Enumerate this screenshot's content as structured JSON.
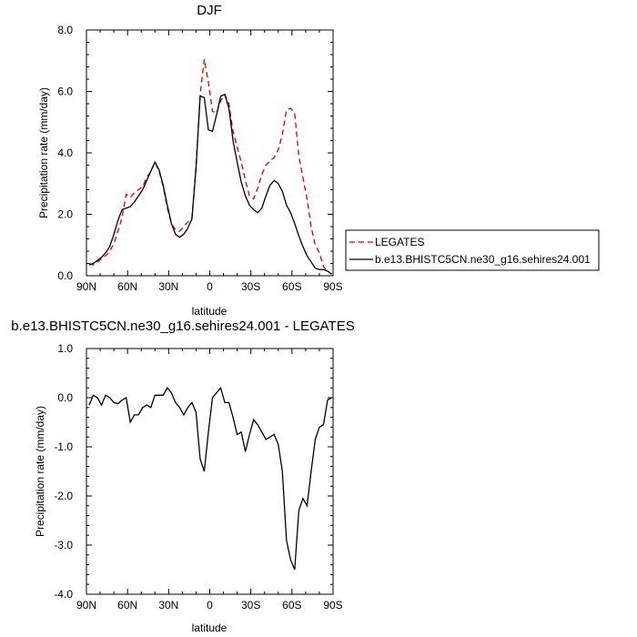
{
  "chart_data": [
    {
      "type": "line",
      "title": "DJF",
      "xlabel": "latitude",
      "ylabel": "Precipitation rate (mm/day)",
      "xlim": [
        -90,
        90
      ],
      "ylim": [
        0,
        8
      ],
      "x_tick_values": [
        -90,
        -60,
        -30,
        0,
        30,
        60,
        90
      ],
      "x_tick_labels": [
        "90N",
        "60N",
        "30N",
        "0",
        "30S",
        "60S",
        "90S"
      ],
      "y_tick_values": [
        0,
        2,
        4,
        6,
        8
      ],
      "y_tick_labels": [
        "0.0",
        "2.0",
        "4.0",
        "6.0",
        "8.0"
      ],
      "legend_position": "right",
      "series": [
        {
          "name": "LEGATES",
          "color": "#dd0000",
          "dash": "dashed",
          "x": [
            -88,
            -85,
            -82,
            -79,
            -76,
            -73,
            -70,
            -67,
            -64,
            -61,
            -58,
            -55,
            -52,
            -49,
            -46,
            -43,
            -40,
            -37,
            -34,
            -31,
            -28,
            -25,
            -22,
            -19,
            -16,
            -13,
            -10,
            -7,
            -4,
            -1,
            2,
            5,
            8,
            11,
            14,
            17,
            20,
            23,
            26,
            29,
            32,
            35,
            38,
            41,
            44,
            47,
            50,
            53,
            56,
            59,
            62,
            65,
            68,
            71,
            74,
            77,
            80,
            83,
            86,
            89
          ],
          "y": [
            0.4,
            0.35,
            0.45,
            0.55,
            0.65,
            0.8,
            1.05,
            1.45,
            1.9,
            2.65,
            2.55,
            2.7,
            2.8,
            2.9,
            3.2,
            3.4,
            3.7,
            3.4,
            2.9,
            2.2,
            1.7,
            1.5,
            1.45,
            1.6,
            1.75,
            1.9,
            3.6,
            5.9,
            7.05,
            6.3,
            5.35,
            5.3,
            5.7,
            5.9,
            5.6,
            4.7,
            4.2,
            3.7,
            3.1,
            2.6,
            2.5,
            2.85,
            3.3,
            3.6,
            3.75,
            3.85,
            4.1,
            4.6,
            5.4,
            5.45,
            5.3,
            3.9,
            3.2,
            2.5,
            1.6,
            1.0,
            0.75,
            0.3,
            0.15,
            0.05
          ]
        },
        {
          "name": "b.e13.BHISTC5CN.ne30_g16.sehires24.001",
          "color": "#000000",
          "dash": "solid",
          "x": [
            -88,
            -85,
            -82,
            -79,
            -76,
            -73,
            -70,
            -67,
            -64,
            -61,
            -58,
            -55,
            -52,
            -49,
            -46,
            -43,
            -40,
            -37,
            -34,
            -31,
            -28,
            -25,
            -22,
            -19,
            -16,
            -13,
            -10,
            -7,
            -4,
            -1,
            2,
            5,
            8,
            11,
            14,
            17,
            20,
            23,
            26,
            29,
            32,
            35,
            38,
            41,
            44,
            47,
            50,
            53,
            56,
            59,
            62,
            65,
            68,
            71,
            74,
            77,
            80,
            83,
            86,
            89
          ],
          "y": [
            0.35,
            0.4,
            0.5,
            0.6,
            0.75,
            0.95,
            1.35,
            1.8,
            2.15,
            2.2,
            2.25,
            2.4,
            2.6,
            2.8,
            3.1,
            3.4,
            3.7,
            3.45,
            2.95,
            2.3,
            1.7,
            1.35,
            1.25,
            1.35,
            1.55,
            1.85,
            3.5,
            5.85,
            5.8,
            4.75,
            4.7,
            5.25,
            5.85,
            5.9,
            5.45,
            4.4,
            3.7,
            3.05,
            2.6,
            2.3,
            2.15,
            2.05,
            2.2,
            2.6,
            2.95,
            3.1,
            3.0,
            2.75,
            2.3,
            2.05,
            1.7,
            1.3,
            0.95,
            0.65,
            0.45,
            0.25,
            0.2,
            0.2,
            0.15,
            0.05
          ]
        }
      ]
    },
    {
      "type": "line",
      "title": "b.e13.BHISTC5CN.ne30_g16.sehires24.001 - LEGATES",
      "xlabel": "latitude",
      "ylabel": "Precipitation rate (mm/day)",
      "xlim": [
        -90,
        90
      ],
      "ylim": [
        -4,
        1
      ],
      "x_tick_values": [
        -90,
        -60,
        -30,
        0,
        30,
        60,
        90
      ],
      "x_tick_labels": [
        "90N",
        "60N",
        "30N",
        "0",
        "30S",
        "60S",
        "90S"
      ],
      "y_tick_values": [
        -4,
        -3,
        -2,
        -1,
        0,
        1
      ],
      "y_tick_labels": [
        "-4.0",
        "-3.0",
        "-2.0",
        "-1.0",
        "0.0",
        "1.0"
      ],
      "series": [
        {
          "color": "#000000",
          "dash": "solid",
          "x": [
            -88,
            -85,
            -82,
            -79,
            -76,
            -73,
            -70,
            -67,
            -64,
            -61,
            -58,
            -55,
            -52,
            -49,
            -46,
            -43,
            -40,
            -37,
            -34,
            -31,
            -28,
            -25,
            -22,
            -19,
            -16,
            -13,
            -10,
            -7,
            -4,
            -1,
            2,
            5,
            8,
            11,
            14,
            17,
            20,
            23,
            26,
            29,
            32,
            35,
            38,
            41,
            44,
            47,
            50,
            53,
            56,
            59,
            62,
            65,
            68,
            71,
            74,
            77,
            80,
            83,
            86,
            89
          ],
          "y": [
            -0.15,
            0.05,
            0.0,
            -0.15,
            0.05,
            0.0,
            -0.1,
            -0.12,
            -0.05,
            0.0,
            -0.5,
            -0.35,
            -0.35,
            -0.2,
            -0.15,
            -0.2,
            0.05,
            0.05,
            0.05,
            0.2,
            0.1,
            -0.1,
            -0.2,
            -0.35,
            -0.2,
            -0.1,
            -0.3,
            -1.25,
            -1.5,
            -0.7,
            0.0,
            0.1,
            0.2,
            -0.1,
            -0.1,
            -0.4,
            -0.75,
            -0.7,
            -1.1,
            -0.75,
            -0.45,
            -0.55,
            -0.7,
            -0.85,
            -0.8,
            -0.75,
            -0.95,
            -1.5,
            -2.9,
            -3.3,
            -3.5,
            -2.3,
            -2.05,
            -2.2,
            -1.5,
            -0.85,
            -0.6,
            -0.55,
            -0.05,
            0.0
          ]
        }
      ]
    }
  ]
}
